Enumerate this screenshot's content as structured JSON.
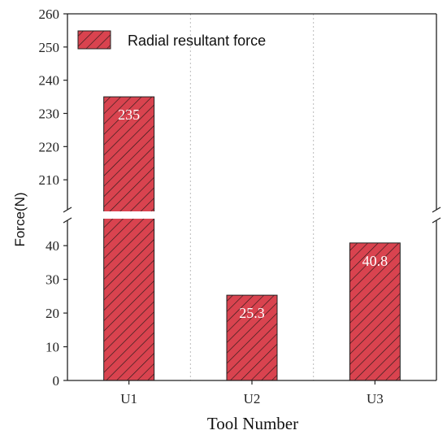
{
  "chart_data": {
    "type": "bar",
    "categories": [
      "U1",
      "U2",
      "U3"
    ],
    "series": [
      {
        "name": "Radial resultant force",
        "values": [
          235,
          25.3,
          40.8
        ],
        "data_labels": [
          "235",
          "25.3",
          "40.8"
        ]
      }
    ],
    "xlabel": "Tool Number",
    "ylabel": "Force(N)",
    "y_break": {
      "lower_range": [
        0,
        48
      ],
      "upper_range": [
        200,
        260
      ],
      "lower_ticks": [
        "0",
        "10",
        "20",
        "30",
        "40"
      ],
      "upper_ticks": [
        "210",
        "220",
        "230",
        "240",
        "250",
        "260"
      ]
    },
    "grid": "vertical dotted lines between categories",
    "legend_placement": "top-left",
    "colors": {
      "bar_fill": "#d9434f",
      "hatch": "#2a1a1a",
      "axis": "#222222",
      "grid": "#bbbbbb"
    }
  }
}
